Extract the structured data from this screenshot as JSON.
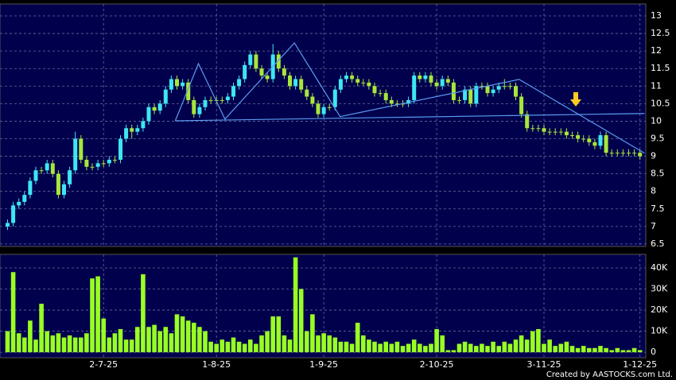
{
  "chart_data": [
    {
      "type": "candlestick",
      "up_color": "#3ee6f2",
      "down_color": "#a8e63c",
      "line_color": "#5b9cf0",
      "ylim": [
        6.43,
        13.34
      ],
      "yticks": [
        6.5,
        7,
        7.5,
        8,
        8.5,
        9,
        9.5,
        10,
        10.5,
        11,
        11.5,
        12,
        12.5,
        13
      ],
      "grid": true,
      "ohlc": [
        [
          7.0,
          7.2,
          6.9,
          7.1
        ],
        [
          7.1,
          7.7,
          7.0,
          7.6
        ],
        [
          7.6,
          7.8,
          7.5,
          7.7
        ],
        [
          7.7,
          8.0,
          7.6,
          7.9
        ],
        [
          7.9,
          8.4,
          7.8,
          8.3
        ],
        [
          8.3,
          8.7,
          8.2,
          8.6
        ],
        [
          8.6,
          8.7,
          8.5,
          8.6
        ],
        [
          8.6,
          8.9,
          8.5,
          8.8
        ],
        [
          8.8,
          8.9,
          8.4,
          8.5
        ],
        [
          8.5,
          8.6,
          7.8,
          7.9
        ],
        [
          7.9,
          8.3,
          7.8,
          8.2
        ],
        [
          8.2,
          8.7,
          8.1,
          8.6
        ],
        [
          8.6,
          9.7,
          8.5,
          9.5
        ],
        [
          9.5,
          9.6,
          8.8,
          8.9
        ],
        [
          8.9,
          9.0,
          8.6,
          8.7
        ],
        [
          8.7,
          8.8,
          8.6,
          8.7
        ],
        [
          8.7,
          8.9,
          8.6,
          8.8
        ],
        [
          8.8,
          8.9,
          8.7,
          8.8
        ],
        [
          8.8,
          9.0,
          8.7,
          8.9
        ],
        [
          8.9,
          9.0,
          8.8,
          8.9
        ],
        [
          8.9,
          9.6,
          8.8,
          9.5
        ],
        [
          9.5,
          9.9,
          9.4,
          9.8
        ],
        [
          9.8,
          9.9,
          9.5,
          9.7
        ],
        [
          9.7,
          9.9,
          9.6,
          9.8
        ],
        [
          9.8,
          10.1,
          9.7,
          10.0
        ],
        [
          10.0,
          10.5,
          9.9,
          10.4
        ],
        [
          10.4,
          10.5,
          10.2,
          10.3
        ],
        [
          10.3,
          10.6,
          10.2,
          10.5
        ],
        [
          10.5,
          11.0,
          10.4,
          10.9
        ],
        [
          10.9,
          11.3,
          10.8,
          11.2
        ],
        [
          11.2,
          11.3,
          10.9,
          11.0
        ],
        [
          11.0,
          11.2,
          10.9,
          11.1
        ],
        [
          11.1,
          11.2,
          10.5,
          10.6
        ],
        [
          10.6,
          10.7,
          10.1,
          10.2
        ],
        [
          10.2,
          10.5,
          10.1,
          10.4
        ],
        [
          10.4,
          10.7,
          10.3,
          10.6
        ],
        [
          10.6,
          10.7,
          10.5,
          10.6
        ],
        [
          10.6,
          10.7,
          10.5,
          10.6
        ],
        [
          10.6,
          10.7,
          10.5,
          10.6
        ],
        [
          10.6,
          10.8,
          10.5,
          10.7
        ],
        [
          10.7,
          11.1,
          10.6,
          11.0
        ],
        [
          11.0,
          11.3,
          10.9,
          11.2
        ],
        [
          11.2,
          11.7,
          11.1,
          11.6
        ],
        [
          11.6,
          12.0,
          11.5,
          11.9
        ],
        [
          11.9,
          12.0,
          11.4,
          11.5
        ],
        [
          11.5,
          11.6,
          11.2,
          11.3
        ],
        [
          11.3,
          11.4,
          11.1,
          11.2
        ],
        [
          11.2,
          12.2,
          11.1,
          11.9
        ],
        [
          11.9,
          12.0,
          11.4,
          11.5
        ],
        [
          11.5,
          11.6,
          11.2,
          11.3
        ],
        [
          11.3,
          11.4,
          10.9,
          11.0
        ],
        [
          11.0,
          11.3,
          10.9,
          11.2
        ],
        [
          11.2,
          11.3,
          10.8,
          10.9
        ],
        [
          10.9,
          11.0,
          10.6,
          10.7
        ],
        [
          10.7,
          10.8,
          10.4,
          10.5
        ],
        [
          10.5,
          10.6,
          10.1,
          10.2
        ],
        [
          10.2,
          10.5,
          10.1,
          10.4
        ],
        [
          10.4,
          10.5,
          10.3,
          10.4
        ],
        [
          10.4,
          11.0,
          10.3,
          10.9
        ],
        [
          10.9,
          11.3,
          10.8,
          11.2
        ],
        [
          11.2,
          11.4,
          11.1,
          11.3
        ],
        [
          11.3,
          11.4,
          11.1,
          11.2
        ],
        [
          11.2,
          11.3,
          11.0,
          11.1
        ],
        [
          11.1,
          11.2,
          11.0,
          11.1
        ],
        [
          11.1,
          11.2,
          10.9,
          11.0
        ],
        [
          11.0,
          11.1,
          10.7,
          10.8
        ],
        [
          10.8,
          10.9,
          10.7,
          10.8
        ],
        [
          10.8,
          10.9,
          10.5,
          10.6
        ],
        [
          10.6,
          10.7,
          10.4,
          10.5
        ],
        [
          10.5,
          10.6,
          10.4,
          10.5
        ],
        [
          10.5,
          10.6,
          10.4,
          10.5
        ],
        [
          10.5,
          10.7,
          10.4,
          10.6
        ],
        [
          10.6,
          11.4,
          10.5,
          11.3
        ],
        [
          11.3,
          11.4,
          11.1,
          11.2
        ],
        [
          11.2,
          11.4,
          11.1,
          11.3
        ],
        [
          11.3,
          11.4,
          11.0,
          11.1
        ],
        [
          11.1,
          11.2,
          10.9,
          11.0
        ],
        [
          11.0,
          11.3,
          10.9,
          11.2
        ],
        [
          11.2,
          11.3,
          11.0,
          11.1
        ],
        [
          11.1,
          11.2,
          10.5,
          10.6
        ],
        [
          10.6,
          10.7,
          10.5,
          10.6
        ],
        [
          10.6,
          11.0,
          10.5,
          10.9
        ],
        [
          10.9,
          11.0,
          10.4,
          10.5
        ],
        [
          10.5,
          11.1,
          10.4,
          11.0
        ],
        [
          11.0,
          11.1,
          10.9,
          11.0
        ],
        [
          11.0,
          11.1,
          10.7,
          10.8
        ],
        [
          10.8,
          11.0,
          10.7,
          10.9
        ],
        [
          10.9,
          11.1,
          10.8,
          11.0
        ],
        [
          11.0,
          11.2,
          10.9,
          11.0
        ],
        [
          11.0,
          11.1,
          10.9,
          11.0
        ],
        [
          11.0,
          11.1,
          10.6,
          10.7
        ],
        [
          10.7,
          10.8,
          10.1,
          10.2
        ],
        [
          10.2,
          10.3,
          9.7,
          9.8
        ],
        [
          9.8,
          9.9,
          9.7,
          9.8
        ],
        [
          9.8,
          9.9,
          9.7,
          9.8
        ],
        [
          9.8,
          9.9,
          9.6,
          9.7
        ],
        [
          9.7,
          9.8,
          9.6,
          9.7
        ],
        [
          9.7,
          9.8,
          9.6,
          9.7
        ],
        [
          9.7,
          9.8,
          9.6,
          9.7
        ],
        [
          9.7,
          9.8,
          9.5,
          9.6
        ],
        [
          9.6,
          9.7,
          9.5,
          9.6
        ],
        [
          9.6,
          9.7,
          9.4,
          9.5
        ],
        [
          9.5,
          9.6,
          9.4,
          9.5
        ],
        [
          9.5,
          9.6,
          9.3,
          9.4
        ],
        [
          9.4,
          9.5,
          9.2,
          9.3
        ],
        [
          9.3,
          9.7,
          9.2,
          9.6
        ],
        [
          9.6,
          9.7,
          9.0,
          9.1
        ],
        [
          9.1,
          9.2,
          9.0,
          9.1
        ],
        [
          9.1,
          9.2,
          9.0,
          9.1
        ],
        [
          9.1,
          9.2,
          9.0,
          9.1
        ],
        [
          9.1,
          9.2,
          9.0,
          9.1
        ],
        [
          9.1,
          9.2,
          9.0,
          9.1
        ],
        [
          9.1,
          9.2,
          8.9,
          9.0
        ]
      ],
      "trend_lines": [
        {
          "points": [
            [
              29.7,
              10.01
            ],
            [
              33.8,
              11.64
            ],
            [
              38.5,
              10.06
            ],
            [
              50.8,
              12.23
            ],
            [
              58.9,
              10.13
            ],
            [
              90.6,
              11.19
            ],
            [
              112.8,
              9.09
            ]
          ]
        },
        {
          "points": [
            [
              29.7,
              10.01
            ],
            [
              112.8,
              10.22
            ]
          ]
        }
      ]
    },
    {
      "type": "bar",
      "color": "#99ff22",
      "ylim": [
        -2600,
        46400
      ],
      "yticks": [
        0,
        {
          "value": 10000,
          "label": "10K"
        },
        {
          "value": 20000,
          "label": "20K"
        },
        {
          "value": 30000,
          "label": "30K"
        },
        {
          "value": 40000,
          "label": "40K"
        }
      ],
      "grid": true,
      "categories": [
        null,
        null,
        null,
        null,
        null,
        null,
        null,
        null,
        null,
        null,
        null,
        null,
        null,
        null,
        null,
        null,
        null,
        "2-7-25",
        null,
        null,
        null,
        null,
        null,
        null,
        null,
        null,
        null,
        null,
        null,
        null,
        null,
        null,
        null,
        null,
        null,
        null,
        null,
        "1-8-25",
        null,
        null,
        null,
        null,
        null,
        null,
        null,
        null,
        null,
        null,
        null,
        null,
        null,
        null,
        null,
        null,
        null,
        null,
        "1-9-25",
        null,
        null,
        null,
        null,
        null,
        null,
        null,
        null,
        null,
        null,
        null,
        null,
        null,
        null,
        null,
        null,
        null,
        null,
        null,
        "2-10-25",
        null,
        null,
        null,
        null,
        null,
        null,
        null,
        null,
        null,
        null,
        null,
        null,
        null,
        null,
        null,
        null,
        null,
        null,
        "3-11-25",
        null,
        null,
        null,
        null,
        null,
        null,
        null,
        null,
        null,
        null,
        null,
        null,
        null,
        null,
        null,
        null,
        "1-12-25"
      ],
      "values": [
        10000,
        38000,
        9000,
        7000,
        15000,
        6000,
        23000,
        10000,
        8000,
        9000,
        7000,
        8000,
        7000,
        7000,
        9000,
        35000,
        36000,
        16000,
        7000,
        9000,
        11000,
        6000,
        6000,
        12000,
        37000,
        12000,
        13000,
        10000,
        12000,
        9000,
        18000,
        17000,
        15000,
        14000,
        12000,
        10000,
        5000,
        4000,
        6000,
        5000,
        7000,
        5000,
        4000,
        6000,
        4000,
        8000,
        10000,
        17000,
        17000,
        8000,
        6000,
        45000,
        30000,
        10000,
        18000,
        8000,
        9000,
        8000,
        7000,
        5000,
        5000,
        4000,
        14000,
        8000,
        6000,
        5000,
        4000,
        5000,
        4000,
        5000,
        3000,
        4000,
        6000,
        4000,
        3000,
        4000,
        11000,
        8000,
        1000,
        1000,
        4000,
        5000,
        4000,
        3000,
        4000,
        3000,
        5000,
        3000,
        5000,
        4000,
        6000,
        8000,
        6000,
        10000,
        11000,
        4000,
        6000,
        3000,
        4000,
        5000,
        3000,
        2000,
        3000,
        2000,
        2000,
        3000,
        2000,
        1000,
        2000,
        1000,
        1000,
        2000,
        1000
      ]
    }
  ],
  "credit": "Created by AASTOCKS.com Ltd."
}
